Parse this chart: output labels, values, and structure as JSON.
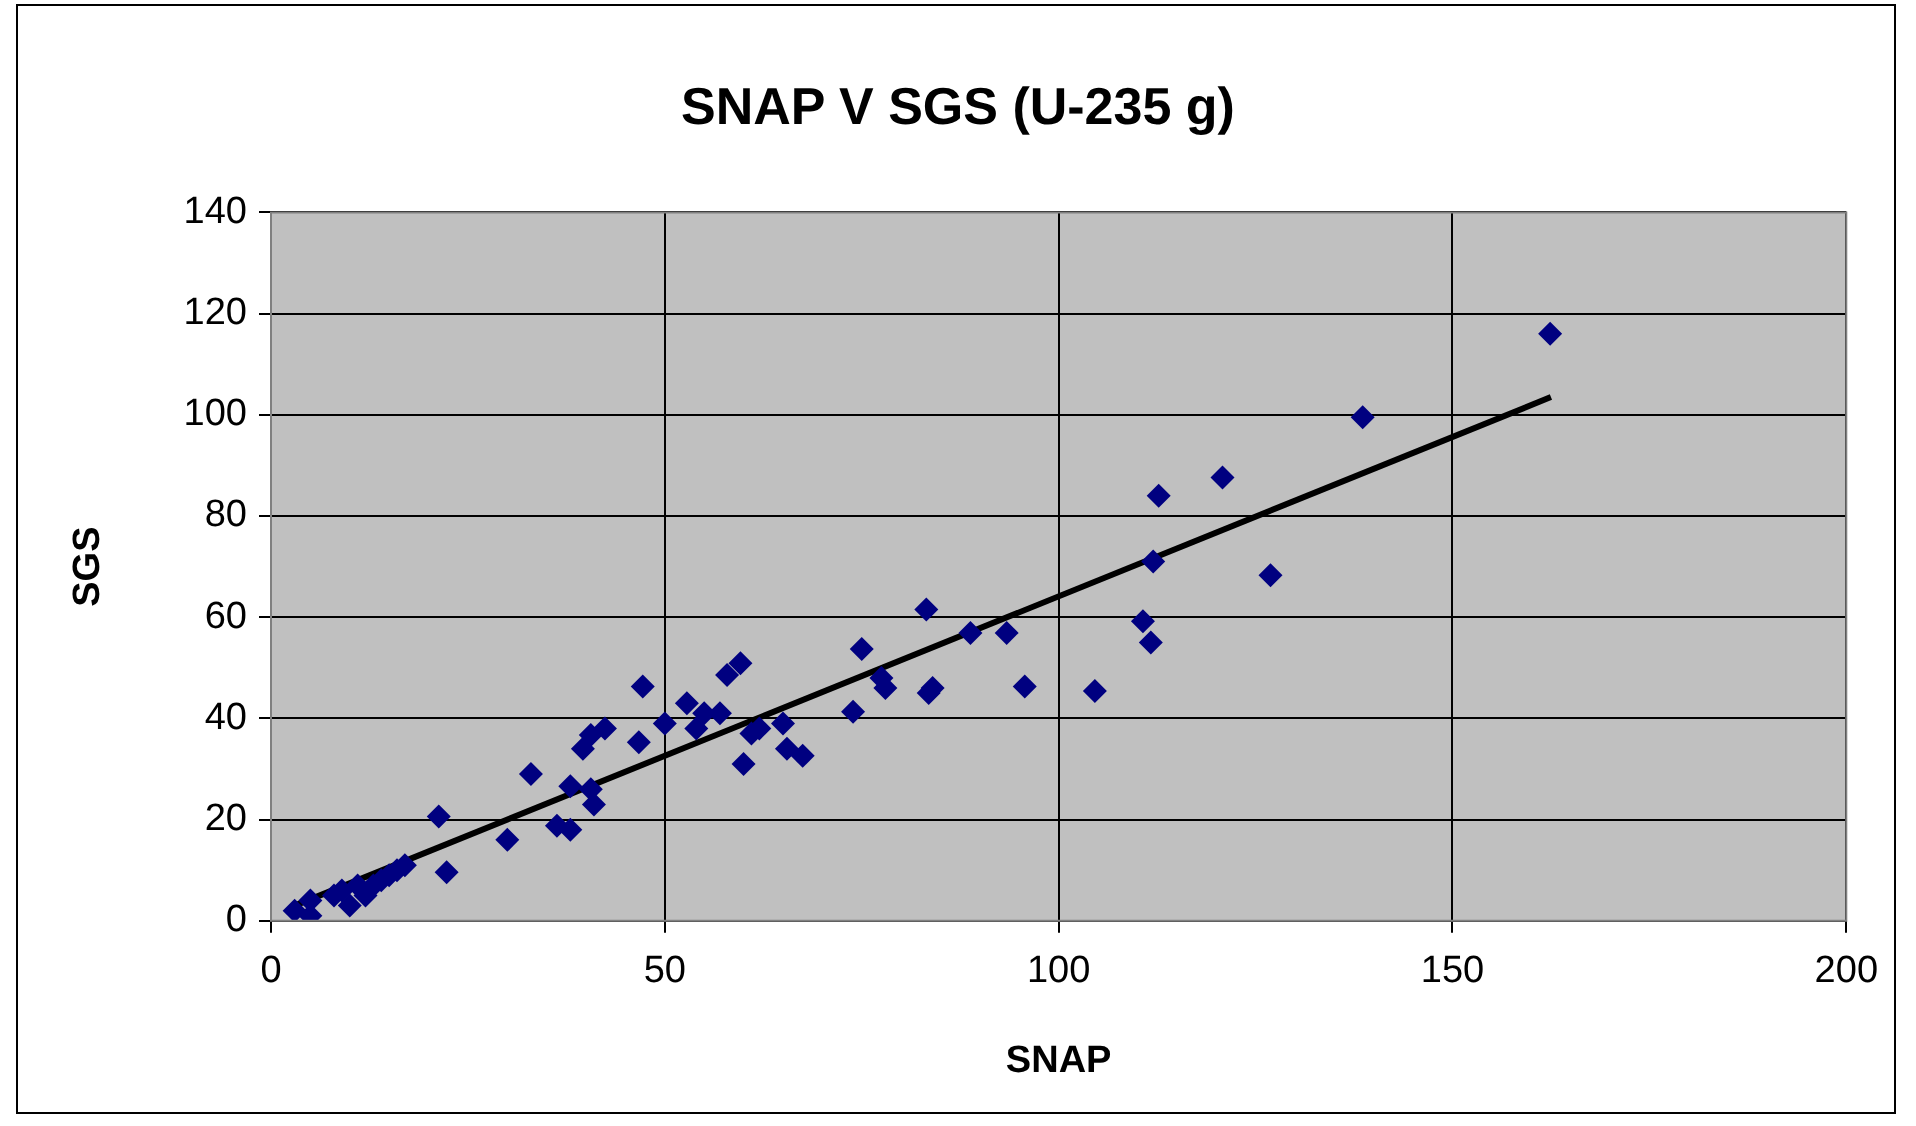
{
  "chart_data": {
    "type": "scatter",
    "title": "SNAP V SGS (U-235 g)",
    "xlabel": "SNAP",
    "ylabel": "SGS",
    "xlim": [
      0,
      200
    ],
    "xticks": [
      0,
      50,
      100,
      150,
      200
    ],
    "ylim": [
      0,
      140
    ],
    "yticks": [
      0,
      20,
      40,
      60,
      80,
      100,
      120,
      140
    ],
    "grid": true,
    "legend": false,
    "marker": "diamond",
    "series": [
      {
        "color": "#000080",
        "x": [
          3,
          5,
          5,
          8,
          9,
          10,
          11,
          12,
          13,
          14,
          15,
          16,
          17,
          21.3,
          22.3,
          30,
          33,
          36.3,
          38,
          38,
          39.6,
          40.6,
          40.6,
          41,
          42.4,
          46.7,
          47.2,
          50,
          52.8,
          54,
          55,
          57,
          57.9,
          59.6,
          60,
          61,
          62,
          65,
          65.5,
          67.5,
          73.9,
          75,
          77.5,
          78,
          83.2,
          83.5,
          84,
          88.8,
          93.4,
          95.7,
          104.6,
          110.7,
          111.7,
          112,
          112.7,
          120.8,
          126.9,
          138.6,
          162.4
        ],
        "values": [
          2,
          1,
          4,
          5,
          6,
          3,
          7,
          5,
          7,
          8,
          9,
          10,
          11,
          20.6,
          9.6,
          16,
          29,
          18.8,
          18,
          26.6,
          34,
          26,
          36.7,
          23,
          38,
          35.3,
          46.3,
          39,
          43,
          38,
          41,
          41,
          48.6,
          50.9,
          31,
          37,
          38,
          39,
          34,
          32.6,
          41.3,
          53.7,
          48,
          46,
          61.5,
          45,
          46,
          56.9,
          56.9,
          46.3,
          45.4,
          59.2,
          55,
          71,
          84,
          87.6,
          68.3,
          99.5,
          116
        ]
      },
      {
        "type": "line",
        "color": "#000000",
        "marker": "none",
        "line_style": "solid",
        "x": [
          3,
          162.5
        ],
        "values": [
          3,
          103.5
        ]
      }
    ]
  }
}
